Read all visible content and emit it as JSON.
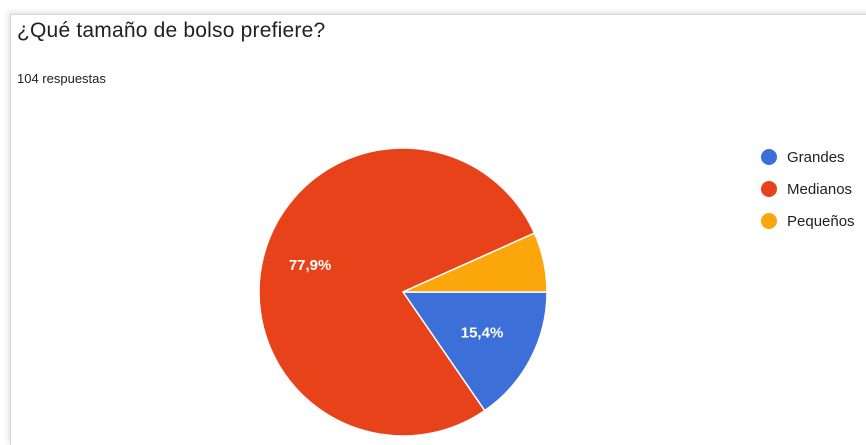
{
  "header": {
    "question": "¿Qué tamaño de bolso prefiere?",
    "response_count": "104 respuestas"
  },
  "chart_data": {
    "type": "pie",
    "title": "¿Qué tamaño de bolso prefiere?",
    "categories": [
      "Grandes",
      "Medianos",
      "Pequeños"
    ],
    "values": [
      15.4,
      77.9,
      6.7
    ],
    "colors": [
      "#3c6fd8",
      "#e8421a",
      "#fba60a"
    ],
    "data_labels": [
      "15,4%",
      "77,9%",
      ""
    ],
    "legend_position": "right"
  }
}
